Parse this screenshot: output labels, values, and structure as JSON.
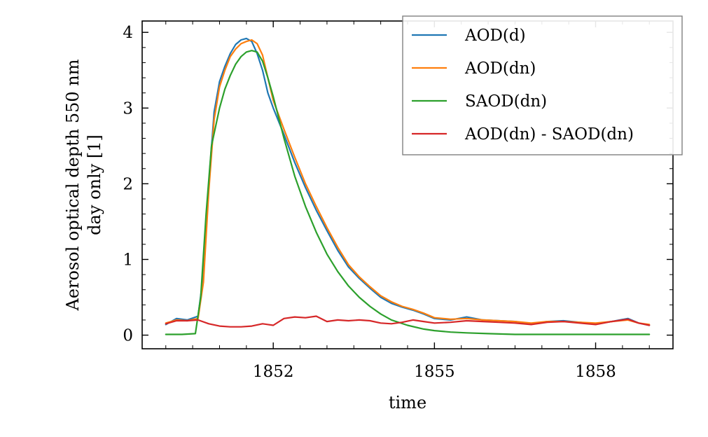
{
  "chart_data": {
    "type": "line",
    "title": "",
    "xlabel": "time",
    "ylabel_lines": [
      "Aerosol optical depth 550 nm",
      "day only [1]"
    ],
    "xlim": [
      1849.56,
      1859.44
    ],
    "ylim": [
      -0.18,
      4.15
    ],
    "xticks": [
      1852,
      1855,
      1858
    ],
    "yticks": [
      0,
      1,
      2,
      3,
      4
    ],
    "legend_position": "top-right",
    "series": [
      {
        "name": "AOD(d)",
        "color": "#1f77b4",
        "x": [
          1850.0,
          1850.2,
          1850.4,
          1850.6,
          1850.7,
          1850.8,
          1850.9,
          1851.0,
          1851.1,
          1851.2,
          1851.3,
          1851.4,
          1851.5,
          1851.6,
          1851.7,
          1851.8,
          1851.9,
          1852.0,
          1852.2,
          1852.4,
          1852.6,
          1852.8,
          1853.0,
          1853.2,
          1853.4,
          1853.6,
          1853.8,
          1854.0,
          1854.2,
          1854.4,
          1854.6,
          1854.8,
          1855.0,
          1855.3,
          1855.6,
          1855.9,
          1856.2,
          1856.5,
          1856.8,
          1857.1,
          1857.4,
          1857.7,
          1858.0,
          1858.3,
          1858.6,
          1858.8,
          1859.0
        ],
        "values": [
          0.14,
          0.22,
          0.2,
          0.25,
          0.8,
          2.0,
          2.95,
          3.35,
          3.55,
          3.72,
          3.84,
          3.9,
          3.92,
          3.88,
          3.72,
          3.5,
          3.2,
          3.0,
          2.65,
          2.28,
          1.95,
          1.65,
          1.38,
          1.12,
          0.9,
          0.75,
          0.62,
          0.5,
          0.42,
          0.37,
          0.33,
          0.28,
          0.22,
          0.2,
          0.24,
          0.2,
          0.19,
          0.18,
          0.15,
          0.18,
          0.19,
          0.17,
          0.15,
          0.18,
          0.22,
          0.16,
          0.13
        ]
      },
      {
        "name": "AOD(dn)",
        "color": "#ff7f0e",
        "x": [
          1850.0,
          1850.2,
          1850.4,
          1850.6,
          1850.7,
          1850.8,
          1850.9,
          1851.0,
          1851.1,
          1851.2,
          1851.3,
          1851.4,
          1851.5,
          1851.6,
          1851.7,
          1851.8,
          1851.9,
          1852.0,
          1852.2,
          1852.4,
          1852.6,
          1852.8,
          1853.0,
          1853.2,
          1853.4,
          1853.6,
          1853.8,
          1854.0,
          1854.2,
          1854.4,
          1854.6,
          1854.8,
          1855.0,
          1855.3,
          1855.6,
          1855.9,
          1856.2,
          1856.5,
          1856.8,
          1857.1,
          1857.4,
          1857.7,
          1858.0,
          1858.3,
          1858.6,
          1858.8,
          1859.0
        ],
        "values": [
          0.16,
          0.2,
          0.19,
          0.22,
          0.7,
          1.9,
          2.85,
          3.28,
          3.5,
          3.68,
          3.78,
          3.85,
          3.88,
          3.9,
          3.85,
          3.7,
          3.4,
          3.1,
          2.72,
          2.35,
          2.0,
          1.7,
          1.42,
          1.16,
          0.93,
          0.77,
          0.64,
          0.52,
          0.44,
          0.38,
          0.34,
          0.29,
          0.23,
          0.21,
          0.22,
          0.2,
          0.19,
          0.18,
          0.16,
          0.18,
          0.18,
          0.17,
          0.16,
          0.18,
          0.2,
          0.16,
          0.14
        ]
      },
      {
        "name": "SAOD(dn)",
        "color": "#2ca02c",
        "x": [
          1850.0,
          1850.3,
          1850.55,
          1850.65,
          1850.75,
          1850.85,
          1851.0,
          1851.1,
          1851.2,
          1851.3,
          1851.4,
          1851.5,
          1851.6,
          1851.7,
          1851.8,
          1851.9,
          1852.0,
          1852.2,
          1852.4,
          1852.6,
          1852.8,
          1853.0,
          1853.2,
          1853.4,
          1853.6,
          1853.8,
          1854.0,
          1854.2,
          1854.5,
          1854.8,
          1855.0,
          1855.3,
          1855.6,
          1856.0,
          1856.5,
          1857.0,
          1857.5,
          1858.0,
          1858.5,
          1859.0
        ],
        "values": [
          0.01,
          0.01,
          0.02,
          0.5,
          1.6,
          2.5,
          3.0,
          3.25,
          3.43,
          3.58,
          3.68,
          3.74,
          3.76,
          3.74,
          3.62,
          3.4,
          3.15,
          2.6,
          2.1,
          1.7,
          1.36,
          1.07,
          0.84,
          0.65,
          0.5,
          0.38,
          0.28,
          0.2,
          0.13,
          0.08,
          0.06,
          0.04,
          0.03,
          0.02,
          0.01,
          0.01,
          0.01,
          0.01,
          0.01,
          0.01
        ]
      },
      {
        "name": "AOD(dn) - SAOD(dn)",
        "color": "#d62728",
        "x": [
          1850.0,
          1850.2,
          1850.4,
          1850.6,
          1850.8,
          1851.0,
          1851.2,
          1851.4,
          1851.6,
          1851.8,
          1852.0,
          1852.2,
          1852.4,
          1852.6,
          1852.8,
          1853.0,
          1853.2,
          1853.4,
          1853.6,
          1853.8,
          1854.0,
          1854.2,
          1854.4,
          1854.6,
          1854.8,
          1855.0,
          1855.3,
          1855.6,
          1855.9,
          1856.2,
          1856.5,
          1856.8,
          1857.1,
          1857.4,
          1857.7,
          1858.0,
          1858.3,
          1858.6,
          1858.8,
          1859.0
        ],
        "values": [
          0.15,
          0.19,
          0.19,
          0.2,
          0.15,
          0.12,
          0.11,
          0.11,
          0.12,
          0.15,
          0.13,
          0.22,
          0.24,
          0.23,
          0.25,
          0.18,
          0.2,
          0.19,
          0.2,
          0.19,
          0.16,
          0.15,
          0.17,
          0.2,
          0.18,
          0.16,
          0.17,
          0.19,
          0.18,
          0.17,
          0.16,
          0.14,
          0.17,
          0.18,
          0.16,
          0.14,
          0.18,
          0.21,
          0.16,
          0.13
        ]
      }
    ]
  }
}
